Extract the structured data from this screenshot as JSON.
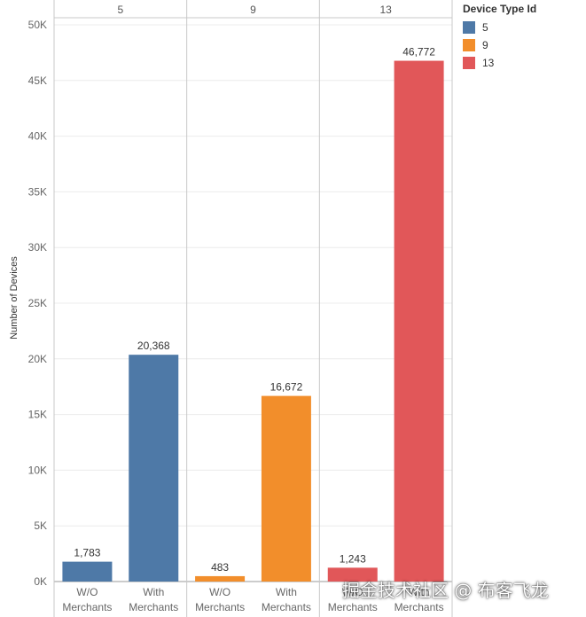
{
  "chart_data": {
    "type": "bar",
    "ylabel": "Number of Devices",
    "ylim": [
      0,
      50000
    ],
    "yticks": [
      0,
      5000,
      10000,
      15000,
      20000,
      25000,
      30000,
      35000,
      40000,
      45000,
      50000
    ],
    "ytick_labels": [
      "0K",
      "5K",
      "10K",
      "15K",
      "20K",
      "25K",
      "30K",
      "35K",
      "40K",
      "45K",
      "50K"
    ],
    "grid": true,
    "legend_position": "top-right",
    "panels": [
      {
        "header": "5",
        "color": "#4E79A7",
        "categories": [
          "W/O Merchants",
          "With Merchants"
        ],
        "values": [
          1783,
          20368
        ],
        "data_labels": [
          "1,783",
          "20,368"
        ]
      },
      {
        "header": "9",
        "color": "#F28E2B",
        "categories": [
          "W/O Merchants",
          "With Merchants"
        ],
        "values": [
          483,
          16672
        ],
        "data_labels": [
          "483",
          "16,672"
        ]
      },
      {
        "header": "13",
        "color": "#E15759",
        "categories": [
          "W/O Merchants",
          "With Merchants"
        ],
        "values": [
          1243,
          46772
        ],
        "data_labels": [
          "1,243",
          "46,772"
        ]
      }
    ],
    "category_lines": {
      "W/O Merchants": [
        "W/O",
        "Merchants"
      ],
      "With Merchants": [
        "With",
        "Merchants"
      ]
    },
    "legend": {
      "title": "Device Type Id",
      "items": [
        {
          "label": "5",
          "color": "#4E79A7"
        },
        {
          "label": "9",
          "color": "#F28E2B"
        },
        {
          "label": "13",
          "color": "#E15759"
        }
      ]
    }
  },
  "watermark": "掘金技术社区 @ 布客飞龙"
}
